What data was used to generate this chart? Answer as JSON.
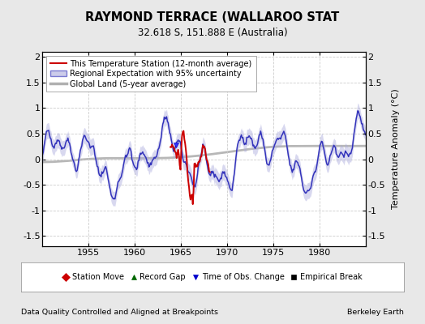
{
  "title": "RAYMOND TERRACE (WALLAROO STAT",
  "subtitle": "32.618 S, 151.888 E (Australia)",
  "ylabel": "Temperature Anomaly (°C)",
  "footer_left": "Data Quality Controlled and Aligned at Breakpoints",
  "footer_right": "Berkeley Earth",
  "ylim": [
    -1.7,
    2.1
  ],
  "xlim": [
    1950,
    1985
  ],
  "xticks": [
    1955,
    1960,
    1965,
    1970,
    1975,
    1980
  ],
  "yticks": [
    -1.5,
    -1.0,
    -0.5,
    0.0,
    0.5,
    1.0,
    1.5,
    2.0
  ],
  "bg_color": "#e8e8e8",
  "plot_bg_color": "#ffffff",
  "grid_color": "#cccccc",
  "regional_color": "#3333bb",
  "regional_fill_color": "#aaaadd",
  "station_color": "#cc0000",
  "global_color": "#b0b0b0",
  "legend_items": [
    {
      "label": "This Temperature Station (12-month average)",
      "color": "#cc0000",
      "lw": 1.5
    },
    {
      "label": "Regional Expectation with 95% uncertainty",
      "color": "#3333bb",
      "lw": 1.5
    },
    {
      "label": "Global Land (5-year average)",
      "color": "#b0b0b0",
      "lw": 3
    }
  ],
  "marker_legend": [
    {
      "label": "Station Move",
      "color": "#cc0000",
      "marker": "D"
    },
    {
      "label": "Record Gap",
      "color": "#006600",
      "marker": "^"
    },
    {
      "label": "Time of Obs. Change",
      "color": "#0000cc",
      "marker": "v"
    },
    {
      "label": "Empirical Break",
      "color": "#000000",
      "marker": "s"
    }
  ],
  "seed": 42
}
